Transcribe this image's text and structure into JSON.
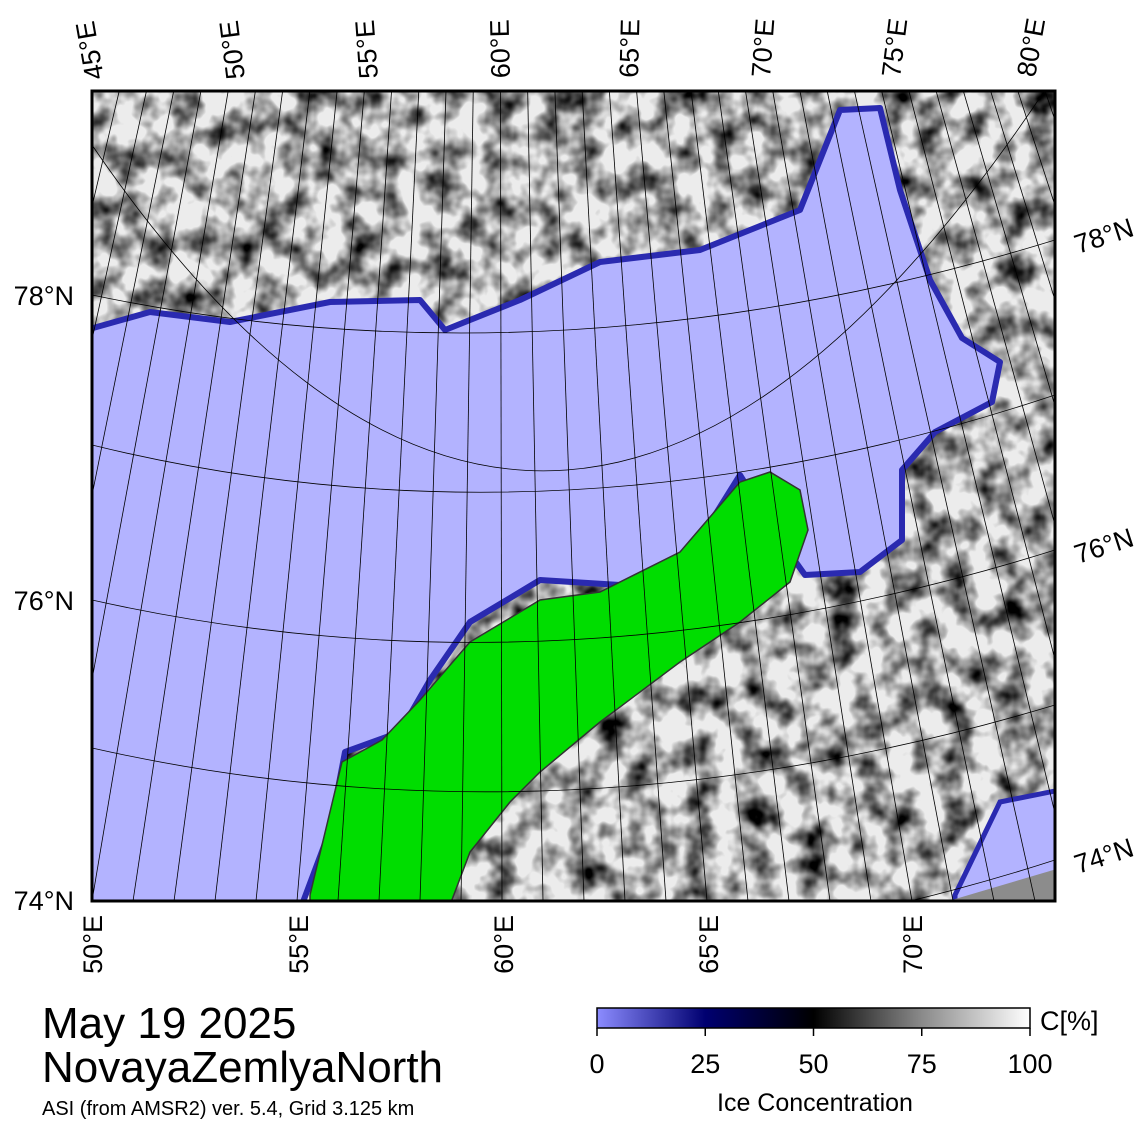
{
  "map": {
    "top_longitude_labels": [
      "45°E",
      "50°E",
      "55°E",
      "60°E",
      "65°E",
      "70°E",
      "75°E",
      "80°E"
    ],
    "bottom_longitude_labels": [
      "50°E",
      "55°E",
      "60°E",
      "65°E",
      "70°E"
    ],
    "left_latitude_labels": [
      "78°N",
      "76°N",
      "74°N"
    ],
    "right_latitude_labels": [
      "78°N",
      "76°N",
      "74°N"
    ]
  },
  "legend": {
    "range": [
      0,
      100
    ],
    "ticks": [
      0,
      25,
      50,
      75,
      100
    ],
    "unit": "C[%]",
    "label": "Ice Concentration"
  },
  "caption": {
    "date": "May 19 2025",
    "region": "NovayaZemlyaNorth",
    "source": "ASI (from AMSR2) ver. 5.4,  Grid 3.125 km"
  }
}
